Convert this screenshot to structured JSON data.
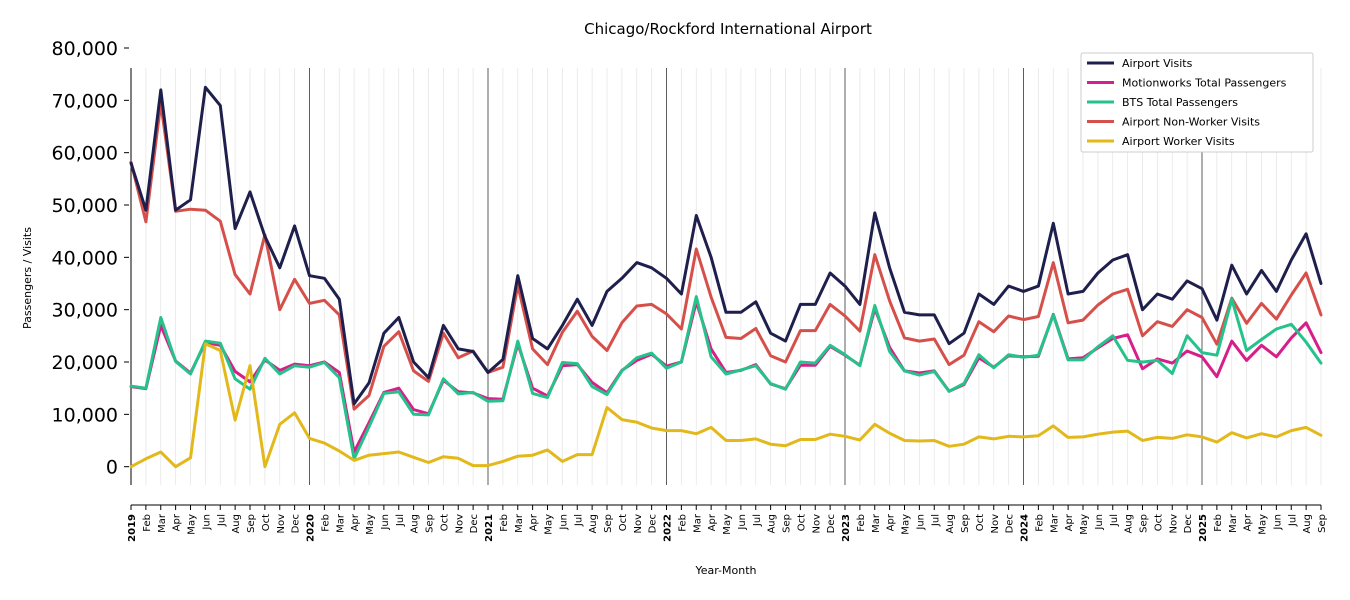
{
  "chart_data": {
    "type": "line",
    "title": "Chicago/Rockford International Airport",
    "xlabel": "Year-Month",
    "ylabel": "Passengers / Visits",
    "ylim": [
      -3500,
      80000
    ],
    "y_ticks": [
      0,
      10000,
      20000,
      30000,
      40000,
      50000,
      60000,
      70000,
      80000
    ],
    "y_tick_labels": [
      "0",
      "10,000",
      "20,000",
      "30,000",
      "40,000",
      "50,000",
      "60,000",
      "70,000",
      "80,000"
    ],
    "grid": "vertical monthly lines, darker at year boundaries",
    "legend_position": "top-right",
    "x": [
      "2019-01",
      "2019-02",
      "2019-03",
      "2019-04",
      "2019-05",
      "2019-06",
      "2019-07",
      "2019-08",
      "2019-09",
      "2019-10",
      "2019-11",
      "2019-12",
      "2020-01",
      "2020-02",
      "2020-03",
      "2020-04",
      "2020-05",
      "2020-06",
      "2020-07",
      "2020-08",
      "2020-09",
      "2020-10",
      "2020-11",
      "2020-12",
      "2021-01",
      "2021-02",
      "2021-03",
      "2021-04",
      "2021-05",
      "2021-06",
      "2021-07",
      "2021-08",
      "2021-09",
      "2021-10",
      "2021-11",
      "2021-12",
      "2022-01",
      "2022-02",
      "2022-03",
      "2022-04",
      "2022-05",
      "2022-06",
      "2022-07",
      "2022-08",
      "2022-09",
      "2022-10",
      "2022-11",
      "2022-12",
      "2023-01",
      "2023-02",
      "2023-03",
      "2023-04",
      "2023-05",
      "2023-06",
      "2023-07",
      "2023-08",
      "2023-09",
      "2023-10",
      "2023-11",
      "2023-12",
      "2024-01",
      "2024-02",
      "2024-03",
      "2024-04",
      "2024-05",
      "2024-06",
      "2024-07",
      "2024-08",
      "2024-09",
      "2024-10",
      "2024-11",
      "2024-12",
      "2025-01",
      "2025-02",
      "2025-03",
      "2025-04",
      "2025-05",
      "2025-06",
      "2025-07",
      "2025-08",
      "2025-09"
    ],
    "x_tick_labels": [
      "2019",
      "Feb",
      "Mar",
      "Apr",
      "May",
      "Jun",
      "Jul",
      "Aug",
      "Sep",
      "Oct",
      "Nov",
      "Dec",
      "2020",
      "Feb",
      "Mar",
      "Apr",
      "May",
      "Jun",
      "Jul",
      "Aug",
      "Sep",
      "Oct",
      "Nov",
      "Dec",
      "2021",
      "Feb",
      "Mar",
      "Apr",
      "May",
      "Jun",
      "Jul",
      "Aug",
      "Sep",
      "Oct",
      "Nov",
      "Dec",
      "2022",
      "Feb",
      "Mar",
      "Apr",
      "May",
      "Jun",
      "Jul",
      "Aug",
      "Sep",
      "Oct",
      "Nov",
      "Dec",
      "2023",
      "Feb",
      "Mar",
      "Apr",
      "May",
      "Jun",
      "Jul",
      "Aug",
      "Sep",
      "Oct",
      "Nov",
      "Dec",
      "2024",
      "Feb",
      "Mar",
      "Apr",
      "May",
      "Jun",
      "Jul",
      "Aug",
      "Sep",
      "Oct",
      "Nov",
      "Dec",
      "2025",
      "Feb",
      "Mar",
      "Apr",
      "May",
      "Jun",
      "Jul",
      "Aug",
      "Sep"
    ],
    "series": [
      {
        "name": "Airport Visits",
        "color": "#1f1f4d",
        "values": [
          58000,
          49000,
          72000,
          49000,
          51000,
          72500,
          69000,
          45500,
          52500,
          44000,
          38000,
          46000,
          36500,
          36000,
          32000,
          12000,
          16000,
          25500,
          28500,
          20000,
          17000,
          27000,
          22500,
          22000,
          18000,
          20500,
          36500,
          24500,
          22500,
          27000,
          32000,
          27000,
          33500,
          36000,
          39000,
          38000,
          36000,
          33000,
          48000,
          40000,
          29500,
          29500,
          31500,
          25500,
          24000,
          31000,
          31000,
          37000,
          34500,
          31000,
          48500,
          38000,
          29500,
          29000,
          29000,
          23500,
          25500,
          33000,
          31000,
          34500,
          33500,
          34500,
          46500,
          33000,
          33500,
          37000,
          39500,
          40500,
          30000,
          33000,
          32000,
          35500,
          34000,
          28000,
          38500,
          33000,
          37500,
          33500,
          39500,
          44500,
          35000
        ]
      },
      {
        "name": "Motionworks Total Passengers",
        "color": "#d61f8a",
        "values": [
          15300,
          14900,
          27000,
          20200,
          17900,
          23700,
          23200,
          18200,
          16200,
          20400,
          18400,
          19600,
          19300,
          20000,
          18000,
          2800,
          8400,
          14200,
          15000,
          10900,
          10100,
          16500,
          14300,
          14100,
          13000,
          12900,
          23500,
          15000,
          13500,
          19300,
          19500,
          16100,
          14100,
          18400,
          20300,
          21500,
          19200,
          20000,
          31500,
          22500,
          18000,
          18400,
          19500,
          15800,
          14900,
          19400,
          19400,
          23000,
          21300,
          19400,
          30200,
          22800,
          18300,
          17900,
          18300,
          14400,
          15700,
          20800,
          19000,
          21200,
          21000,
          21100,
          29100,
          20600,
          20800,
          22700,
          24500,
          25200,
          18700,
          20600,
          19800,
          22100,
          21000,
          17200,
          24000,
          20300,
          23200,
          21000,
          24600,
          27500,
          21800
        ]
      },
      {
        "name": "BTS Total Passengers",
        "color": "#26c28b",
        "values": [
          15400,
          15000,
          28500,
          20100,
          17700,
          24000,
          23600,
          16800,
          14800,
          20700,
          17700,
          19300,
          19000,
          19900,
          17000,
          1500,
          7600,
          14000,
          14300,
          10000,
          9900,
          16800,
          13900,
          14200,
          12500,
          12600,
          24000,
          14000,
          13200,
          19900,
          19700,
          15300,
          13800,
          18300,
          20800,
          21700,
          18800,
          20000,
          32500,
          21000,
          17700,
          18500,
          19300,
          15900,
          14800,
          20000,
          19800,
          23200,
          21400,
          19300,
          30800,
          22000,
          18300,
          17500,
          18200,
          14400,
          15900,
          21400,
          18900,
          21400,
          20900,
          21300,
          29000,
          20400,
          20400,
          22900,
          25000,
          20300,
          20000,
          20300,
          17800,
          25000,
          21800,
          21300,
          32000,
          22200,
          24300,
          26300,
          27200,
          23800,
          19800
        ]
      },
      {
        "name": "Airport Non-Worker Visits",
        "color": "#d6504b",
        "values": [
          58200,
          46800,
          69500,
          48800,
          49200,
          49000,
          46900,
          36700,
          33000,
          44300,
          30000,
          35800,
          31200,
          31800,
          29000,
          11000,
          13600,
          23000,
          25800,
          18300,
          16300,
          25500,
          20800,
          22100,
          18000,
          19000,
          34700,
          22500,
          19500,
          25700,
          29700,
          24900,
          22200,
          27500,
          30700,
          31000,
          29200,
          26300,
          41600,
          32400,
          24700,
          24500,
          26400,
          21200,
          20000,
          26000,
          26000,
          31000,
          28800,
          25900,
          40500,
          31700,
          24600,
          24000,
          24400,
          19500,
          21300,
          27700,
          25800,
          28800,
          28100,
          28700,
          39000,
          27500,
          28000,
          30900,
          33000,
          33900,
          25000,
          27700,
          26800,
          30000,
          28500,
          23400,
          32200,
          27400,
          31200,
          28200,
          32800,
          37000,
          29000
        ]
      },
      {
        "name": "Airport Worker Visits",
        "color": "#e3b81b",
        "values": [
          0,
          1500,
          2800,
          0,
          1700,
          23500,
          22200,
          8900,
          19300,
          0,
          8100,
          10300,
          5400,
          4500,
          3000,
          1200,
          2200,
          2500,
          2800,
          1800,
          800,
          1900,
          1600,
          200,
          200,
          1000,
          2000,
          2200,
          3200,
          1000,
          2300,
          2300,
          11300,
          9000,
          8500,
          7400,
          6900,
          6900,
          6300,
          7500,
          5000,
          5000,
          5300,
          4300,
          4000,
          5200,
          5200,
          6200,
          5800,
          5100,
          8100,
          6400,
          5000,
          4900,
          5000,
          3900,
          4300,
          5700,
          5300,
          5800,
          5700,
          5900,
          7800,
          5600,
          5700,
          6200,
          6600,
          6800,
          5000,
          5600,
          5400,
          6100,
          5700,
          4700,
          6500,
          5500,
          6300,
          5700,
          6900,
          7500,
          6000
        ]
      }
    ]
  }
}
